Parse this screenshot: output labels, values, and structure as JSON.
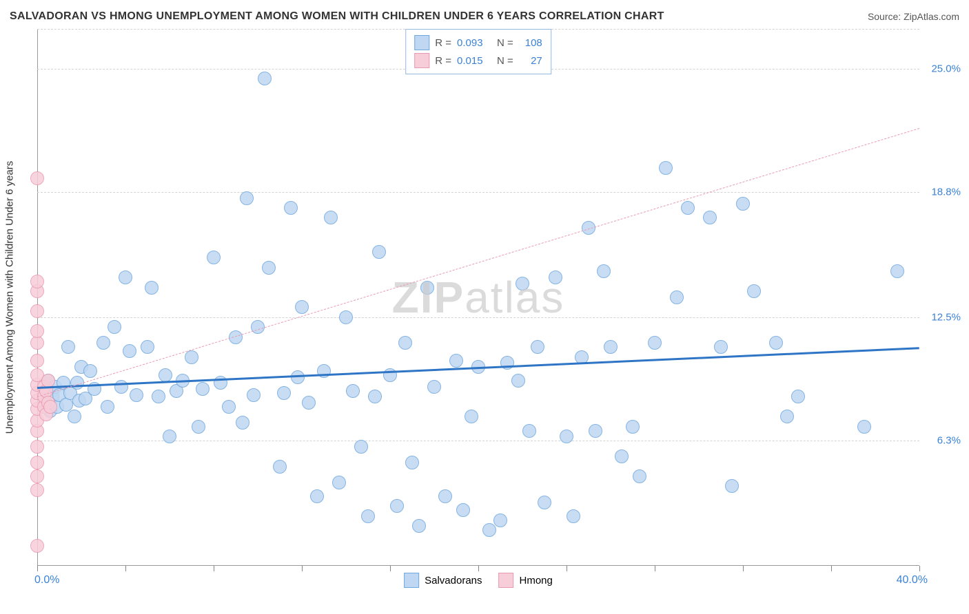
{
  "title": "SALVADORAN VS HMONG UNEMPLOYMENT AMONG WOMEN WITH CHILDREN UNDER 6 YEARS CORRELATION CHART",
  "source": "Source: ZipAtlas.com",
  "watermark_bold": "ZIP",
  "watermark_light": "atlas",
  "chart": {
    "type": "scatter",
    "xlim": [
      0,
      40
    ],
    "ylim": [
      0,
      27
    ],
    "x_start_label": "0.0%",
    "x_end_label": "40.0%",
    "y_axis_label": "Unemployment Among Women with Children Under 6 years",
    "y_ticks": [
      {
        "v": 6.3,
        "label": "6.3%"
      },
      {
        "v": 12.5,
        "label": "12.5%"
      },
      {
        "v": 18.8,
        "label": "18.8%"
      },
      {
        "v": 25.0,
        "label": "25.0%"
      }
    ],
    "x_tick_step": 4,
    "grid_color": "#d3d3d3",
    "background_color": "#ffffff",
    "point_radius": 9,
    "series": [
      {
        "name": "Salvadorans",
        "color_fill": "#bfd7f2",
        "color_stroke": "#6fa8dc",
        "R": "0.093",
        "N": "108",
        "trend": {
          "y_at_x0": 9.0,
          "y_at_xmax": 11.0,
          "color": "#2e75c6",
          "width": 3,
          "dashed": false
        },
        "points": [
          [
            0.3,
            8.2
          ],
          [
            0.4,
            8.8
          ],
          [
            0.5,
            9.3
          ],
          [
            0.6,
            7.8
          ],
          [
            0.7,
            8.5
          ],
          [
            0.8,
            9.0
          ],
          [
            0.9,
            8.0
          ],
          [
            1.0,
            8.6
          ],
          [
            1.2,
            9.2
          ],
          [
            1.3,
            8.1
          ],
          [
            1.4,
            11.0
          ],
          [
            1.5,
            8.7
          ],
          [
            1.7,
            7.5
          ],
          [
            1.8,
            9.2
          ],
          [
            1.9,
            8.3
          ],
          [
            2.0,
            10.0
          ],
          [
            2.2,
            8.4
          ],
          [
            2.4,
            9.8
          ],
          [
            2.6,
            8.9
          ],
          [
            3.0,
            11.2
          ],
          [
            3.2,
            8.0
          ],
          [
            3.5,
            12.0
          ],
          [
            3.8,
            9.0
          ],
          [
            4.0,
            14.5
          ],
          [
            4.2,
            10.8
          ],
          [
            4.5,
            8.6
          ],
          [
            5.0,
            11.0
          ],
          [
            5.2,
            14.0
          ],
          [
            5.5,
            8.5
          ],
          [
            5.8,
            9.6
          ],
          [
            6.0,
            6.5
          ],
          [
            6.3,
            8.8
          ],
          [
            6.6,
            9.3
          ],
          [
            7.0,
            10.5
          ],
          [
            7.3,
            7.0
          ],
          [
            7.5,
            8.9
          ],
          [
            8.0,
            15.5
          ],
          [
            8.3,
            9.2
          ],
          [
            8.7,
            8.0
          ],
          [
            9.0,
            11.5
          ],
          [
            9.3,
            7.2
          ],
          [
            9.5,
            18.5
          ],
          [
            9.8,
            8.6
          ],
          [
            10.0,
            12.0
          ],
          [
            10.3,
            24.5
          ],
          [
            10.5,
            15.0
          ],
          [
            11.0,
            5.0
          ],
          [
            11.2,
            8.7
          ],
          [
            11.5,
            18.0
          ],
          [
            11.8,
            9.5
          ],
          [
            12.0,
            13.0
          ],
          [
            12.3,
            8.2
          ],
          [
            12.7,
            3.5
          ],
          [
            13.0,
            9.8
          ],
          [
            13.3,
            17.5
          ],
          [
            13.7,
            4.2
          ],
          [
            14.0,
            12.5
          ],
          [
            14.3,
            8.8
          ],
          [
            14.7,
            6.0
          ],
          [
            15.0,
            2.5
          ],
          [
            15.3,
            8.5
          ],
          [
            15.5,
            15.8
          ],
          [
            16.0,
            9.6
          ],
          [
            16.3,
            3.0
          ],
          [
            16.7,
            11.2
          ],
          [
            17.0,
            5.2
          ],
          [
            17.3,
            2.0
          ],
          [
            17.7,
            14.0
          ],
          [
            18.0,
            9.0
          ],
          [
            18.5,
            3.5
          ],
          [
            19.0,
            10.3
          ],
          [
            19.3,
            2.8
          ],
          [
            19.7,
            7.5
          ],
          [
            20.0,
            10.0
          ],
          [
            20.5,
            1.8
          ],
          [
            21.0,
            2.3
          ],
          [
            21.3,
            10.2
          ],
          [
            21.8,
            9.3
          ],
          [
            22.0,
            14.2
          ],
          [
            22.3,
            6.8
          ],
          [
            22.7,
            11.0
          ],
          [
            23.0,
            3.2
          ],
          [
            23.5,
            14.5
          ],
          [
            24.0,
            6.5
          ],
          [
            24.3,
            2.5
          ],
          [
            24.7,
            10.5
          ],
          [
            25.0,
            17.0
          ],
          [
            25.3,
            6.8
          ],
          [
            25.7,
            14.8
          ],
          [
            26.0,
            11.0
          ],
          [
            26.5,
            5.5
          ],
          [
            27.0,
            7.0
          ],
          [
            27.3,
            4.5
          ],
          [
            28.0,
            11.2
          ],
          [
            28.5,
            20.0
          ],
          [
            29.0,
            13.5
          ],
          [
            29.5,
            18.0
          ],
          [
            30.5,
            17.5
          ],
          [
            31.0,
            11.0
          ],
          [
            31.5,
            4.0
          ],
          [
            32.0,
            18.2
          ],
          [
            32.5,
            13.8
          ],
          [
            33.5,
            11.2
          ],
          [
            34.0,
            7.5
          ],
          [
            34.5,
            8.5
          ],
          [
            37.5,
            7.0
          ],
          [
            39.0,
            14.8
          ]
        ]
      },
      {
        "name": "Hmong",
        "color_fill": "#f7cdd9",
        "color_stroke": "#e99ab3",
        "R": "0.015",
        "N": "27",
        "trend": {
          "y_at_x0": 8.5,
          "y_at_xmax": 22.0,
          "color": "#e99ab3",
          "width": 1.5,
          "dashed": true
        },
        "points": [
          [
            0.0,
            1.0
          ],
          [
            0.0,
            3.8
          ],
          [
            0.0,
            4.5
          ],
          [
            0.0,
            5.2
          ],
          [
            0.0,
            6.0
          ],
          [
            0.0,
            6.8
          ],
          [
            0.0,
            7.3
          ],
          [
            0.0,
            7.9
          ],
          [
            0.0,
            8.3
          ],
          [
            0.0,
            8.7
          ],
          [
            0.0,
            9.1
          ],
          [
            0.0,
            9.6
          ],
          [
            0.0,
            10.3
          ],
          [
            0.0,
            11.2
          ],
          [
            0.0,
            11.8
          ],
          [
            0.0,
            12.8
          ],
          [
            0.0,
            13.8
          ],
          [
            0.0,
            14.3
          ],
          [
            0.0,
            19.5
          ],
          [
            0.3,
            8.0
          ],
          [
            0.3,
            8.5
          ],
          [
            0.3,
            9.0
          ],
          [
            0.4,
            7.6
          ],
          [
            0.4,
            8.8
          ],
          [
            0.5,
            8.2
          ],
          [
            0.5,
            9.3
          ],
          [
            0.6,
            8.0
          ]
        ]
      }
    ]
  },
  "legend_bottom": [
    {
      "label": "Salvadorans",
      "fill": "#bfd7f2",
      "stroke": "#6fa8dc"
    },
    {
      "label": "Hmong",
      "fill": "#f7cdd9",
      "stroke": "#e99ab3"
    }
  ]
}
